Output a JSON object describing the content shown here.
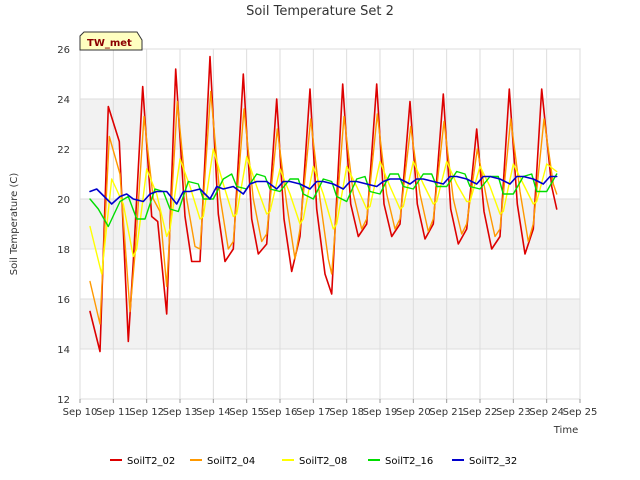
{
  "chart_data": {
    "type": "line",
    "title": "Soil Temperature Set 2",
    "xlabel": "Time",
    "ylabel": "Soil Temperature (C)",
    "badge": "TW_met",
    "ylim": [
      12,
      26
    ],
    "yticks": [
      12,
      14,
      16,
      18,
      20,
      22,
      24,
      26
    ],
    "xlim_days": [
      10,
      25
    ],
    "xticks": [
      {
        "day": 10,
        "label": "Sep 10"
      },
      {
        "day": 11,
        "label": "Sep 11"
      },
      {
        "day": 12,
        "label": "Sep 12"
      },
      {
        "day": 13,
        "label": "Sep 13"
      },
      {
        "day": 14,
        "label": "Sep 14"
      },
      {
        "day": 15,
        "label": "Sep 15"
      },
      {
        "day": 16,
        "label": "Sep 16"
      },
      {
        "day": 17,
        "label": "Sep 17"
      },
      {
        "day": 18,
        "label": "Sep 18"
      },
      {
        "day": 19,
        "label": "Sep 19"
      },
      {
        "day": 20,
        "label": "Sep 20"
      },
      {
        "day": 21,
        "label": "Sep 21"
      },
      {
        "day": 22,
        "label": "Sep 22"
      },
      {
        "day": 23,
        "label": "Sep 23"
      },
      {
        "day": 24,
        "label": "Sep 24"
      },
      {
        "day": 25,
        "label": "Sep 25"
      }
    ],
    "grid": true,
    "band_fill": "#f2f2f2",
    "legend_position": "bottom",
    "series": [
      {
        "name": "SoilT2_02",
        "color": "#dd0000",
        "width": 1.6,
        "x": [
          10.3,
          10.6,
          10.85,
          11.18,
          11.45,
          11.6,
          11.88,
          12.15,
          12.33,
          12.6,
          12.87,
          13.15,
          13.35,
          13.6,
          13.9,
          14.15,
          14.35,
          14.6,
          14.9,
          15.15,
          15.35,
          15.6,
          15.9,
          16.12,
          16.35,
          16.6,
          16.9,
          17.1,
          17.35,
          17.55,
          17.88,
          18.12,
          18.35,
          18.6,
          18.9,
          19.12,
          19.35,
          19.6,
          19.9,
          20.12,
          20.35,
          20.6,
          20.9,
          21.12,
          21.35,
          21.6,
          21.9,
          22.12,
          22.35,
          22.6,
          22.88,
          23.12,
          23.35,
          23.6,
          23.85,
          24.15,
          24.3
        ],
        "y": [
          15.5,
          13.9,
          23.7,
          22.3,
          14.3,
          17.5,
          24.5,
          19.3,
          19.1,
          15.4,
          25.2,
          19.3,
          17.5,
          17.5,
          25.7,
          19.4,
          17.5,
          18.0,
          25.0,
          19.2,
          17.8,
          18.2,
          24.0,
          19.2,
          17.1,
          18.5,
          24.4,
          19.6,
          17.0,
          16.2,
          24.6,
          19.8,
          18.5,
          19.0,
          24.6,
          19.8,
          18.5,
          19.0,
          23.9,
          19.8,
          18.4,
          19.0,
          24.2,
          19.6,
          18.2,
          18.8,
          22.8,
          19.5,
          18.0,
          18.5,
          24.4,
          19.8,
          17.8,
          18.8,
          24.4,
          20.5,
          19.6
        ]
      },
      {
        "name": "SoilT2_04",
        "color": "#ff9900",
        "width": 1.4,
        "x": [
          10.3,
          10.6,
          10.88,
          11.2,
          11.5,
          11.65,
          11.92,
          12.2,
          12.4,
          12.6,
          12.92,
          13.2,
          13.45,
          13.6,
          13.92,
          14.2,
          14.45,
          14.6,
          14.92,
          15.2,
          15.45,
          15.6,
          15.92,
          16.2,
          16.45,
          16.6,
          16.92,
          17.2,
          17.45,
          17.55,
          17.92,
          18.2,
          18.45,
          18.6,
          18.92,
          19.2,
          19.45,
          19.6,
          19.92,
          20.2,
          20.45,
          20.6,
          20.92,
          21.2,
          21.45,
          21.6,
          21.92,
          22.2,
          22.45,
          22.6,
          22.92,
          23.2,
          23.45,
          23.6,
          23.92,
          24.2,
          24.3
        ],
        "y": [
          16.7,
          15.0,
          22.5,
          21.0,
          15.5,
          17.8,
          23.3,
          20.0,
          19.5,
          16.5,
          23.9,
          20.0,
          18.1,
          18.0,
          24.3,
          20.1,
          18.0,
          18.3,
          23.6,
          20.0,
          18.3,
          18.6,
          22.8,
          19.8,
          17.6,
          18.8,
          23.2,
          20.0,
          17.6,
          17.0,
          23.3,
          20.2,
          18.8,
          19.2,
          23.4,
          20.2,
          18.8,
          19.2,
          22.9,
          20.2,
          18.7,
          19.2,
          23.1,
          20.0,
          18.6,
          19.0,
          22.0,
          20.0,
          18.5,
          18.8,
          23.2,
          20.3,
          18.3,
          19.0,
          23.2,
          20.6,
          20.2
        ]
      },
      {
        "name": "SoilT2_08",
        "color": "#ffff00",
        "width": 1.4,
        "x": [
          10.3,
          10.65,
          10.95,
          11.3,
          11.6,
          11.7,
          12.0,
          12.3,
          12.6,
          12.7,
          13.0,
          13.3,
          13.6,
          13.7,
          14.0,
          14.3,
          14.6,
          14.7,
          15.0,
          15.3,
          15.6,
          15.7,
          16.0,
          16.3,
          16.6,
          16.7,
          17.0,
          17.3,
          17.6,
          17.7,
          18.0,
          18.3,
          18.6,
          18.7,
          19.0,
          19.3,
          19.6,
          19.7,
          20.0,
          20.3,
          20.6,
          20.7,
          21.0,
          21.3,
          21.6,
          21.7,
          22.0,
          22.3,
          22.6,
          22.7,
          23.0,
          23.3,
          23.6,
          23.7,
          24.0,
          24.3
        ],
        "y": [
          18.9,
          17.0,
          20.8,
          19.8,
          17.7,
          18.0,
          21.2,
          20.2,
          18.5,
          18.8,
          21.6,
          20.5,
          19.2,
          19.3,
          22.0,
          20.6,
          19.3,
          19.4,
          21.7,
          20.5,
          19.4,
          19.5,
          21.2,
          20.2,
          19.0,
          19.2,
          21.3,
          20.2,
          18.8,
          19.0,
          21.3,
          20.5,
          19.6,
          19.7,
          21.5,
          20.5,
          19.6,
          19.7,
          21.5,
          20.6,
          19.8,
          19.9,
          21.5,
          20.6,
          19.9,
          19.9,
          21.3,
          20.5,
          19.4,
          19.5,
          21.4,
          20.6,
          19.8,
          19.9,
          21.4,
          21.1
        ]
      },
      {
        "name": "SoilT2_16",
        "color": "#00dd00",
        "width": 1.4,
        "x": [
          10.3,
          10.55,
          10.85,
          11.2,
          11.45,
          11.7,
          11.95,
          12.25,
          12.5,
          12.7,
          12.95,
          13.25,
          13.55,
          13.7,
          14.0,
          14.3,
          14.55,
          14.7,
          15.0,
          15.3,
          15.55,
          15.7,
          16.0,
          16.3,
          16.55,
          16.7,
          17.0,
          17.3,
          17.55,
          17.7,
          18.0,
          18.3,
          18.55,
          18.7,
          19.0,
          19.3,
          19.55,
          19.7,
          20.0,
          20.3,
          20.55,
          20.7,
          21.0,
          21.3,
          21.55,
          21.7,
          22.0,
          22.3,
          22.55,
          22.7,
          23.0,
          23.3,
          23.55,
          23.7,
          24.0,
          24.3
        ],
        "y": [
          20.0,
          19.6,
          18.9,
          19.9,
          20.1,
          19.2,
          19.2,
          20.4,
          20.3,
          19.6,
          19.5,
          20.7,
          20.6,
          20.0,
          20.0,
          20.8,
          21.0,
          20.5,
          20.4,
          21.0,
          20.9,
          20.4,
          20.3,
          20.8,
          20.8,
          20.2,
          20.0,
          20.8,
          20.7,
          20.1,
          19.9,
          20.8,
          20.9,
          20.3,
          20.2,
          21.0,
          21.0,
          20.5,
          20.4,
          21.0,
          21.0,
          20.5,
          20.5,
          21.1,
          21.0,
          20.5,
          20.4,
          20.9,
          20.9,
          20.2,
          20.2,
          20.9,
          21.0,
          20.3,
          20.3,
          21.0
        ]
      },
      {
        "name": "SoilT2_32",
        "color": "#0000cc",
        "width": 1.6,
        "x": [
          10.3,
          10.5,
          10.65,
          10.95,
          11.2,
          11.4,
          11.6,
          11.9,
          12.1,
          12.3,
          12.6,
          12.9,
          13.1,
          13.3,
          13.6,
          13.9,
          14.1,
          14.3,
          14.6,
          14.9,
          15.1,
          15.3,
          15.6,
          15.9,
          16.1,
          16.3,
          16.6,
          16.9,
          17.1,
          17.3,
          17.6,
          17.9,
          18.1,
          18.3,
          18.6,
          18.9,
          19.1,
          19.3,
          19.6,
          19.9,
          20.1,
          20.3,
          20.6,
          20.9,
          21.1,
          21.3,
          21.6,
          21.9,
          22.1,
          22.3,
          22.6,
          22.9,
          23.1,
          23.3,
          23.6,
          23.9,
          24.1,
          24.3
        ],
        "y": [
          20.3,
          20.4,
          20.2,
          19.8,
          20.1,
          20.2,
          20.0,
          19.9,
          20.2,
          20.3,
          20.3,
          19.8,
          20.3,
          20.3,
          20.4,
          20.0,
          20.5,
          20.4,
          20.5,
          20.2,
          20.6,
          20.7,
          20.7,
          20.4,
          20.7,
          20.7,
          20.6,
          20.4,
          20.7,
          20.7,
          20.6,
          20.4,
          20.7,
          20.7,
          20.6,
          20.5,
          20.7,
          20.8,
          20.8,
          20.6,
          20.8,
          20.8,
          20.7,
          20.6,
          20.9,
          20.9,
          20.8,
          20.6,
          20.9,
          20.9,
          20.8,
          20.6,
          20.9,
          20.9,
          20.8,
          20.6,
          20.9,
          20.9
        ]
      }
    ]
  }
}
